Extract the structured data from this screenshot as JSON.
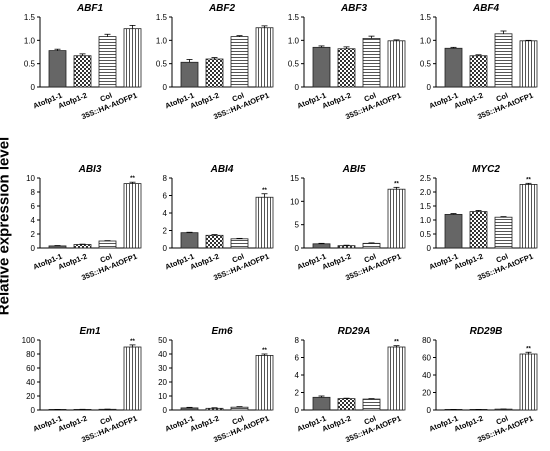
{
  "figure": {
    "ylabel": "Relative expression level",
    "categories": [
      "Atofp1-1",
      "Atofp1-2",
      "Col",
      "35S::HA-AtOFP1"
    ],
    "patterns": [
      "dark",
      "checker",
      "hlines",
      "vlines"
    ],
    "significance": "**"
  },
  "chart_data": [
    {
      "type": "bar",
      "title": "ABF1",
      "categories": [
        "Atofp1-1",
        "Atofp1-2",
        "Col",
        "35S::HA-AtOFP1"
      ],
      "values": [
        0.78,
        0.67,
        1.08,
        1.25
      ],
      "errors": [
        0.03,
        0.04,
        0.05,
        0.07
      ],
      "ylim": [
        0,
        1.5
      ],
      "yticks": [
        0,
        0.5,
        1.0,
        1.5
      ],
      "ytick_labels": [
        "0",
        "0.5",
        "1.0",
        "1.5"
      ],
      "stars": [
        false,
        false,
        false,
        false
      ]
    },
    {
      "type": "bar",
      "title": "ABF2",
      "categories": [
        "Atofp1-1",
        "Atofp1-2",
        "Col",
        "35S::HA-AtOFP1"
      ],
      "values": [
        0.53,
        0.6,
        1.08,
        1.27
      ],
      "errors": [
        0.06,
        0.03,
        0.02,
        0.04
      ],
      "ylim": [
        0,
        1.5
      ],
      "yticks": [
        0,
        0.5,
        1.0,
        1.5
      ],
      "ytick_labels": [
        "0",
        "0.5",
        "1.0",
        "1.5"
      ],
      "stars": [
        false,
        false,
        false,
        false
      ]
    },
    {
      "type": "bar",
      "title": "ABF3",
      "categories": [
        "Atofp1-1",
        "Atofp1-2",
        "Col",
        "35S::HA-AtOFP1"
      ],
      "values": [
        0.85,
        0.82,
        1.04,
        0.99
      ],
      "errors": [
        0.03,
        0.04,
        0.05,
        0.02
      ],
      "ylim": [
        0,
        1.5
      ],
      "yticks": [
        0,
        0.5,
        1.0,
        1.5
      ],
      "ytick_labels": [
        "0",
        "0.5",
        "1.0",
        "1.5"
      ],
      "stars": [
        false,
        false,
        false,
        false
      ]
    },
    {
      "type": "bar",
      "title": "ABF4",
      "categories": [
        "Atofp1-1",
        "Atofp1-2",
        "Col",
        "35S::HA-AtOFP1"
      ],
      "values": [
        0.83,
        0.67,
        1.14,
        0.99
      ],
      "errors": [
        0.02,
        0.02,
        0.06,
        0.01
      ],
      "ylim": [
        0,
        1.5
      ],
      "yticks": [
        0,
        0.5,
        1.0,
        1.5
      ],
      "ytick_labels": [
        "0",
        "0.5",
        "1.0",
        "1.5"
      ],
      "stars": [
        false,
        false,
        false,
        false
      ]
    },
    {
      "type": "bar",
      "title": "ABI3",
      "categories": [
        "Atofp1-1",
        "Atofp1-2",
        "Col",
        "35S::HA-AtOFP1"
      ],
      "values": [
        0.3,
        0.5,
        1.0,
        9.2
      ],
      "errors": [
        0.05,
        0.05,
        0.05,
        0.2
      ],
      "ylim": [
        0,
        10
      ],
      "yticks": [
        0,
        2,
        4,
        6,
        8,
        10
      ],
      "ytick_labels": [
        "0",
        "2",
        "4",
        "6",
        "8",
        "10"
      ],
      "stars": [
        false,
        false,
        false,
        true
      ]
    },
    {
      "type": "bar",
      "title": "ABI4",
      "categories": [
        "Atofp1-1",
        "Atofp1-2",
        "Col",
        "35S::HA-AtOFP1"
      ],
      "values": [
        1.75,
        1.45,
        1.05,
        5.8
      ],
      "errors": [
        0.05,
        0.08,
        0.05,
        0.4
      ],
      "ylim": [
        0,
        8
      ],
      "yticks": [
        0,
        2,
        4,
        6,
        8
      ],
      "ytick_labels": [
        "0",
        "2",
        "4",
        "6",
        "8"
      ],
      "stars": [
        false,
        false,
        false,
        true
      ]
    },
    {
      "type": "bar",
      "title": "ABI5",
      "categories": [
        "Atofp1-1",
        "Atofp1-2",
        "Col",
        "35S::HA-AtOFP1"
      ],
      "values": [
        0.9,
        0.5,
        1.0,
        12.6
      ],
      "errors": [
        0.1,
        0.1,
        0.1,
        0.4
      ],
      "ylim": [
        0,
        15
      ],
      "yticks": [
        0,
        5,
        10,
        15
      ],
      "ytick_labels": [
        "0",
        "5",
        "10",
        "15"
      ],
      "stars": [
        false,
        false,
        false,
        true
      ]
    },
    {
      "type": "bar",
      "title": "MYC2",
      "categories": [
        "Atofp1-1",
        "Atofp1-2",
        "Col",
        "35S::HA-AtOFP1"
      ],
      "values": [
        1.2,
        1.3,
        1.1,
        2.27
      ],
      "errors": [
        0.03,
        0.04,
        0.02,
        0.04
      ],
      "ylim": [
        0,
        2.5
      ],
      "yticks": [
        0,
        0.5,
        1.0,
        1.5,
        2.0,
        2.5
      ],
      "ytick_labels": [
        "0",
        "0.5",
        "1.0",
        "1.5",
        "2.0",
        "2.5"
      ],
      "stars": [
        false,
        false,
        false,
        true
      ]
    },
    {
      "type": "bar",
      "title": "Em1",
      "categories": [
        "Atofp1-1",
        "Atofp1-2",
        "Col",
        "35S::HA-AtOFP1"
      ],
      "values": [
        0.5,
        0.8,
        1.0,
        90
      ],
      "errors": [
        0.2,
        0.2,
        0.2,
        3
      ],
      "ylim": [
        0,
        100
      ],
      "yticks": [
        0,
        20,
        40,
        60,
        80,
        100
      ],
      "ytick_labels": [
        "0",
        "20",
        "40",
        "60",
        "80",
        "100"
      ],
      "stars": [
        false,
        false,
        false,
        true
      ]
    },
    {
      "type": "bar",
      "title": "Em6",
      "categories": [
        "Atofp1-1",
        "Atofp1-2",
        "Col",
        "35S::HA-AtOFP1"
      ],
      "values": [
        1.5,
        1.2,
        2.0,
        39
      ],
      "errors": [
        0.4,
        0.4,
        0.4,
        1
      ],
      "ylim": [
        0,
        50
      ],
      "yticks": [
        0,
        10,
        20,
        30,
        40,
        50
      ],
      "ytick_labels": [
        "0",
        "10",
        "20",
        "30",
        "40",
        "50"
      ],
      "stars": [
        false,
        false,
        false,
        true
      ]
    },
    {
      "type": "bar",
      "title": "RD29A",
      "categories": [
        "Atofp1-1",
        "Atofp1-2",
        "Col",
        "35S::HA-AtOFP1"
      ],
      "values": [
        1.45,
        1.3,
        1.25,
        7.2
      ],
      "errors": [
        0.15,
        0.05,
        0.05,
        0.15
      ],
      "ylim": [
        0,
        8
      ],
      "yticks": [
        0,
        2,
        4,
        6,
        8
      ],
      "ytick_labels": [
        "0",
        "2",
        "4",
        "6",
        "8"
      ],
      "stars": [
        false,
        false,
        false,
        true
      ]
    },
    {
      "type": "bar",
      "title": "RD29B",
      "categories": [
        "Atofp1-1",
        "Atofp1-2",
        "Col",
        "35S::HA-AtOFP1"
      ],
      "values": [
        0.4,
        0.4,
        1.0,
        64
      ],
      "errors": [
        0.1,
        0.1,
        0.1,
        2
      ],
      "ylim": [
        0,
        80
      ],
      "yticks": [
        0,
        20,
        40,
        60,
        80
      ],
      "ytick_labels": [
        "0",
        "20",
        "40",
        "60",
        "80"
      ],
      "stars": [
        false,
        false,
        false,
        true
      ]
    }
  ]
}
